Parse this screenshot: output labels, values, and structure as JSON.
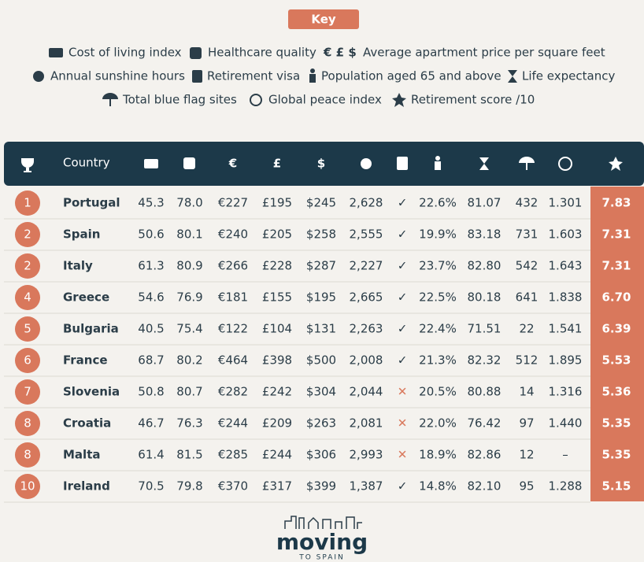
{
  "key": {
    "title": "Key",
    "items": [
      "Cost of living index",
      "Healthcare quality",
      "Average apartment price per square feet",
      "Annual sunshine hours",
      "Retirement visa",
      "Population aged 65 and above",
      "Life expectancy",
      "Total blue flag sites",
      "Global peace index",
      "Retirement score /10"
    ],
    "currency_symbols": "€ £ $"
  },
  "table": {
    "header": {
      "country": "Country",
      "eur": "€",
      "gbp": "£",
      "usd": "$"
    },
    "rows": [
      [
        "1",
        "Portugal",
        "45.3",
        "78.0",
        "€227",
        "£195",
        "$245",
        "2,628",
        "✓",
        "22.6%",
        "81.07",
        "432",
        "1.301",
        "7.83"
      ],
      [
        "2",
        "Spain",
        "50.6",
        "80.1",
        "€240",
        "£205",
        "$258",
        "2,555",
        "✓",
        "19.9%",
        "83.18",
        "731",
        "1.603",
        "7.31"
      ],
      [
        "2",
        "Italy",
        "61.3",
        "80.9",
        "€266",
        "£228",
        "$287",
        "2,227",
        "✓",
        "23.7%",
        "82.80",
        "542",
        "1.643",
        "7.31"
      ],
      [
        "4",
        "Greece",
        "54.6",
        "76.9",
        "€181",
        "£155",
        "$195",
        "2,665",
        "✓",
        "22.5%",
        "80.18",
        "641",
        "1.838",
        "6.70"
      ],
      [
        "5",
        "Bulgaria",
        "40.5",
        "75.4",
        "€122",
        "£104",
        "$131",
        "2,263",
        "✓",
        "22.4%",
        "71.51",
        "22",
        "1.541",
        "6.39"
      ],
      [
        "6",
        "France",
        "68.7",
        "80.2",
        "€464",
        "£398",
        "$500",
        "2,008",
        "✓",
        "21.3%",
        "82.32",
        "512",
        "1.895",
        "5.53"
      ],
      [
        "7",
        "Slovenia",
        "50.8",
        "80.7",
        "€282",
        "£242",
        "$304",
        "2,044",
        "✕",
        "20.5%",
        "80.88",
        "14",
        "1.316",
        "5.36"
      ],
      [
        "8",
        "Croatia",
        "46.7",
        "76.3",
        "€244",
        "£209",
        "$263",
        "2,081",
        "✕",
        "22.0%",
        "76.42",
        "97",
        "1.440",
        "5.35"
      ],
      [
        "8",
        "Malta",
        "61.4",
        "81.5",
        "€285",
        "£244",
        "$306",
        "2,993",
        "✕",
        "18.9%",
        "82.86",
        "12",
        "–",
        "5.35"
      ],
      [
        "10",
        "Ireland",
        "70.5",
        "79.8",
        "€370",
        "£317",
        "$399",
        "1,387",
        "✓",
        "14.8%",
        "82.10",
        "95",
        "1.288",
        "5.15"
      ]
    ]
  },
  "logo": {
    "name": "moving",
    "tagline": "TO SPAIN"
  }
}
